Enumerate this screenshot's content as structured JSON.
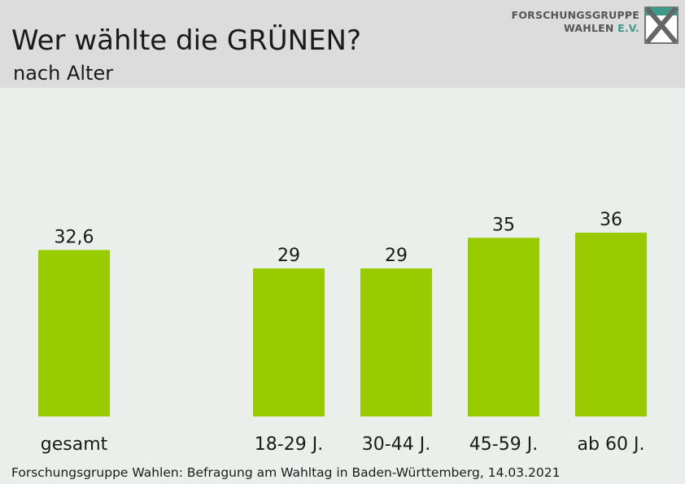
{
  "header": {
    "title": "Wer wählte die GRÜNEN?",
    "subtitle": "nach Alter"
  },
  "logo": {
    "line1": "FORSCHUNGSGRUPPE",
    "line2": "WAHLEN",
    "line2_suffix": "E.V.",
    "icon": "fgw-logo-icon"
  },
  "footnote": "Forschungsgruppe Wahlen: Befragung am Wahltag in Baden-Württemberg, 14.03.2021",
  "colors": {
    "bar": "#99cc00",
    "text": "#1a1a1a",
    "header_bg": "#dcdcdc",
    "plot_bg": "#eaefec"
  },
  "chart_data": {
    "type": "bar",
    "categories": [
      "gesamt",
      "18-29 J.",
      "30-44 J.",
      "45-59 J.",
      "ab 60 J."
    ],
    "values": [
      32.6,
      29,
      29,
      35,
      36
    ],
    "value_labels": [
      "32,6",
      "29",
      "29",
      "35",
      "36"
    ],
    "ylim": [
      0,
      36
    ],
    "grid": false,
    "legend": "none"
  }
}
